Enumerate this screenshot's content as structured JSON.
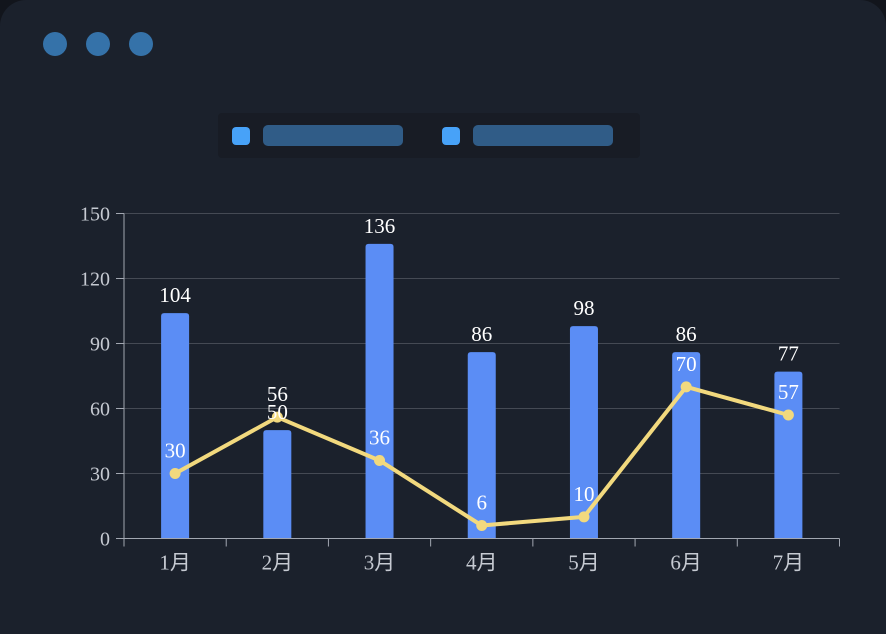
{
  "window": {
    "outer_background": "#12151c",
    "panel_background": "#1b212c",
    "controls": {
      "dot_color": "#3572a9",
      "dots": [
        "window-dot-1",
        "window-dot-2",
        "window-dot-3"
      ]
    }
  },
  "legend": {
    "band_color": "#181c25",
    "swatch_color": "#47a2f8",
    "label_bar_color": "#305c87",
    "items": [
      {
        "name": "bar-series-legend",
        "label_text": ""
      },
      {
        "name": "line-series-legend",
        "label_text": ""
      }
    ]
  },
  "chart_data": {
    "type": "bar",
    "subtype": "bar+line combo",
    "categories": [
      "1月",
      "2月",
      "3月",
      "4月",
      "5月",
      "6月",
      "7月"
    ],
    "series": [
      {
        "name": "bar-series",
        "type": "bar",
        "color": "#5b8df5",
        "values": [
          104,
          50,
          136,
          86,
          98,
          86,
          77
        ]
      },
      {
        "name": "line-series",
        "type": "line",
        "color": "#f2d97e",
        "values": [
          30,
          56,
          36,
          6,
          10,
          70,
          57
        ]
      }
    ],
    "title": "",
    "xlabel": "",
    "ylabel": "",
    "ylim": [
      0,
      150
    ],
    "y_ticks": [
      0,
      30,
      60,
      90,
      120,
      150
    ],
    "grid": true,
    "legend_position": "top",
    "colors": {
      "bar": "#5b8df5",
      "line": "#f2d97e",
      "grid": "#454a54",
      "axis": "#a2a7b1",
      "axis_text": "#c6cad2",
      "value_label": "#ffffff"
    }
  }
}
